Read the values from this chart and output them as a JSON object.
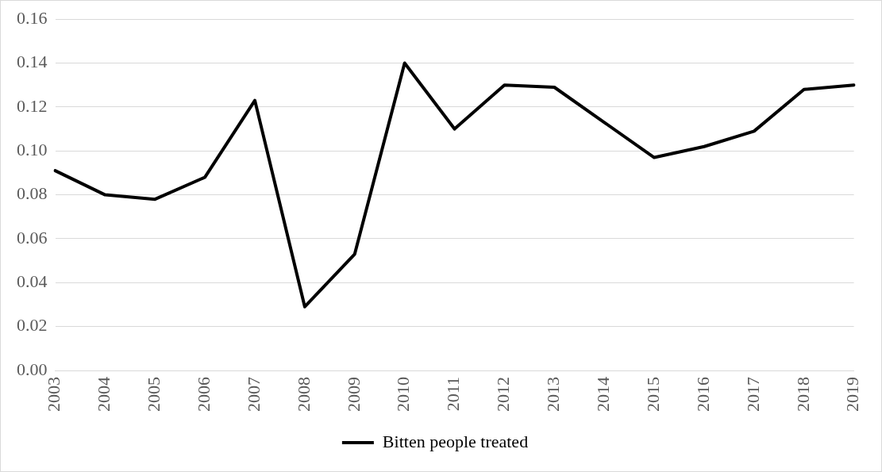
{
  "chart_data": {
    "type": "line",
    "categories": [
      "2003",
      "2004",
      "2005",
      "2006",
      "2007",
      "2008",
      "2009",
      "2010",
      "2011",
      "2012",
      "2013",
      "2014",
      "2015",
      "2016",
      "2017",
      "2018",
      "2019"
    ],
    "series": [
      {
        "name": "Bitten people treated",
        "color": "#000000",
        "values": [
          0.091,
          0.08,
          0.078,
          0.088,
          0.123,
          0.029,
          0.053,
          0.14,
          0.11,
          0.13,
          0.129,
          0.113,
          0.097,
          0.102,
          0.109,
          0.128,
          0.13
        ]
      }
    ],
    "ylim": [
      0,
      0.16
    ],
    "yticks": [
      {
        "value": 0,
        "label": "0.00"
      },
      0.02,
      0.04,
      0.06,
      0.08,
      {
        "value": 0.1,
        "label": "0.10"
      },
      0.12,
      0.14,
      0.16
    ],
    "grid": "y",
    "legend": "bottom",
    "marker": "none",
    "line_style": "solid"
  }
}
